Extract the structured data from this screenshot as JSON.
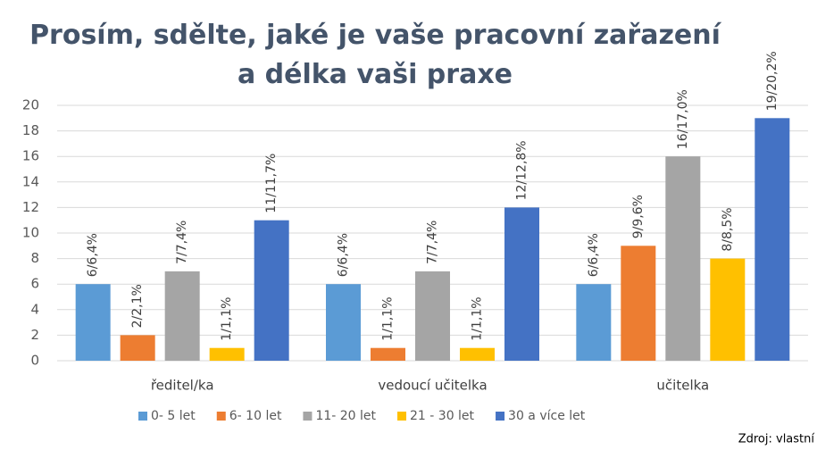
{
  "chart_data": {
    "type": "bar",
    "title": "Prosím, sdělte, jaké je vaše pracovní zařazení a délka vaši praxe",
    "categories": [
      "ředitel/ka",
      "vedoucí učitelka",
      "učitelka"
    ],
    "series": [
      {
        "name": "0- 5 let",
        "color": "#5b9bd5",
        "values": [
          6,
          6,
          6
        ],
        "value_labels": [
          "6/6,4%",
          "6/6,4%",
          "6/6,4%"
        ]
      },
      {
        "name": "6- 10 let",
        "color": "#ed7d31",
        "values": [
          2,
          1,
          9
        ],
        "value_labels": [
          "2/2,1%",
          "1/1,1%",
          "9/9,6%"
        ]
      },
      {
        "name": "11- 20 let",
        "color": "#a5a5a5",
        "values": [
          7,
          7,
          16
        ],
        "value_labels": [
          "7/7,4%",
          "7/7,4%",
          "16/17,0%"
        ]
      },
      {
        "name": "21 - 30 let",
        "color": "#ffc000",
        "values": [
          1,
          1,
          8
        ],
        "value_labels": [
          "1/1,1%",
          "1/1,1%",
          "8/8,5%"
        ]
      },
      {
        "name": "30 a více let",
        "color": "#4472c4",
        "values": [
          11,
          12,
          19
        ],
        "value_labels": [
          "11/11,7%",
          "12/12,8%",
          "19/20,2%"
        ]
      }
    ],
    "ylim": [
      0,
      20
    ],
    "yticks": [
      0,
      2,
      4,
      6,
      8,
      10,
      12,
      14,
      16,
      18,
      20
    ],
    "grid": true,
    "legend": "bottom",
    "source": "Zdroj: vlastní"
  }
}
